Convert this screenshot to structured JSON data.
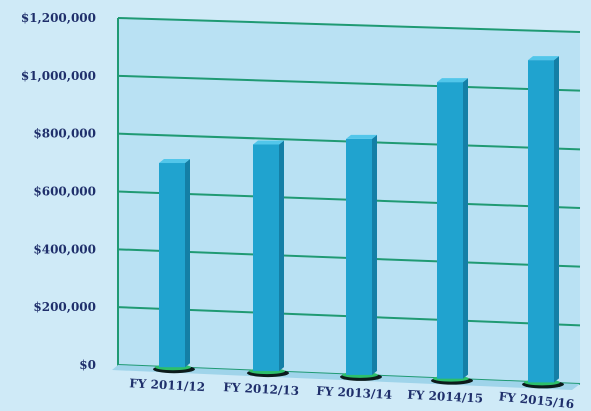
{
  "chart_data": {
    "type": "bar",
    "title": "",
    "xlabel": "",
    "ylabel": "",
    "categories": [
      "FY 2011/12",
      "FY 2012/13",
      "FY 2013/14",
      "FY 2014/15",
      "FY 2015/16"
    ],
    "series": [
      {
        "values": [
          705000,
          780000,
          810000,
          1015000,
          1100000
        ]
      }
    ],
    "ylim": [
      0,
      1200000
    ],
    "yticks": [
      0,
      200000,
      400000,
      600000,
      800000,
      1000000,
      1200000
    ],
    "ytick_labels": [
      "$0",
      "$200,000",
      "$400,000",
      "$600,000",
      "$800,000",
      "$1,000,000",
      "$1,200,000"
    ],
    "grid": true,
    "legend": "none",
    "colors": {
      "background": "#cfeaf7",
      "plot_face": "#b9e1f3",
      "gridline": "#1f9a73",
      "bar_front": "#20a3cf",
      "bar_side": "#147fa6",
      "bar_top": "#52c6ea",
      "bar_base": "#2dbf6a",
      "text": "#1f2f6b"
    }
  }
}
